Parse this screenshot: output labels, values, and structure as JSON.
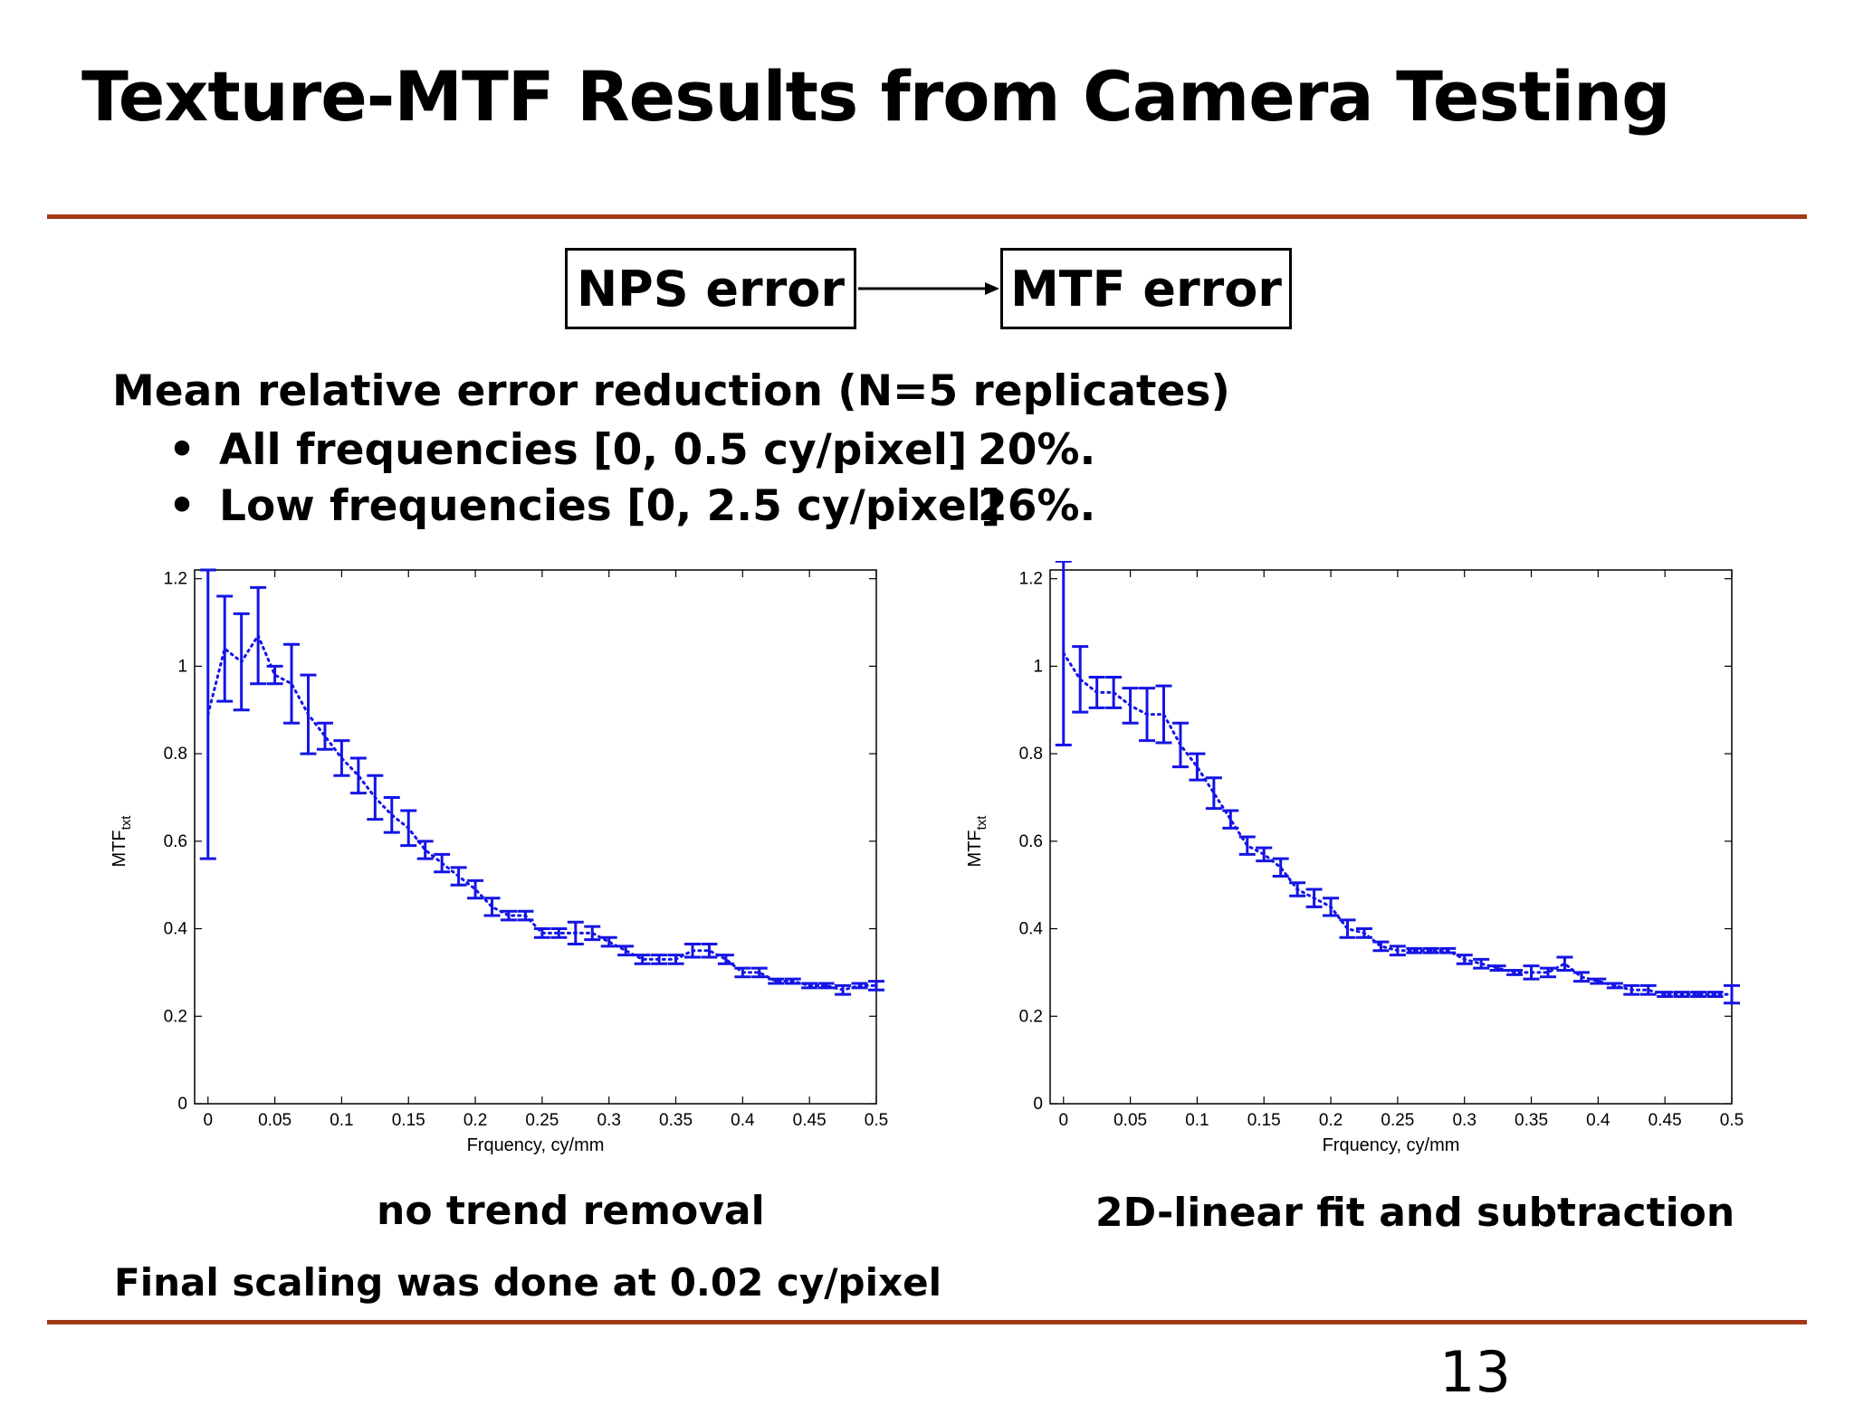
{
  "slide": {
    "title": "Texture-MTF Results from Camera Testing",
    "flow": {
      "from": "NPS error",
      "to": "MTF error"
    },
    "summary": "Mean relative error reduction (N=5 replicates)",
    "bullets": [
      {
        "text": "All frequencies [0, 0.5 cy/pixel]",
        "value": "20%."
      },
      {
        "text": "Low frequencies [0, 2.5 cy/pixel]",
        "value": "26%."
      }
    ],
    "bullet_glyph": "•",
    "captions": [
      "no trend removal",
      "2D-linear fit and subtraction"
    ],
    "footnote": "Final scaling was done at 0.02 cy/pixel",
    "page_number": "13",
    "colors": {
      "rule": "#a23a17",
      "series": "#1414e6"
    }
  },
  "chart_data": [
    {
      "type": "line",
      "error_bars": true,
      "xlabel": "Frquency, cy/mm",
      "ylabel": "MTF",
      "ylabel_subscript": "txt",
      "xlim": [
        -0.01,
        0.5
      ],
      "ylim": [
        0,
        1.22
      ],
      "xticks": [
        0,
        0.05,
        0.1,
        0.15,
        0.2,
        0.25,
        0.3,
        0.35,
        0.4,
        0.45,
        0.5
      ],
      "xtick_labels": [
        "0",
        "0.05",
        "0.1",
        "0.15",
        "0.2",
        "0.25",
        "0.3",
        "0.35",
        "0.4",
        "0.45",
        "0.5"
      ],
      "yticks": [
        0,
        0.2,
        0.4,
        0.6,
        0.8,
        1,
        1.2
      ],
      "ytick_labels": [
        "0",
        "0.2",
        "0.4",
        "0.6",
        "0.8",
        "1",
        "1.2"
      ],
      "grid": false,
      "x": [
        0,
        0.0125,
        0.025,
        0.0375,
        0.05,
        0.0625,
        0.075,
        0.0875,
        0.1,
        0.1125,
        0.125,
        0.1375,
        0.15,
        0.1625,
        0.175,
        0.1875,
        0.2,
        0.2125,
        0.225,
        0.2375,
        0.25,
        0.2625,
        0.275,
        0.2875,
        0.3,
        0.3125,
        0.325,
        0.3375,
        0.35,
        0.3625,
        0.375,
        0.3875,
        0.4,
        0.4125,
        0.425,
        0.4375,
        0.45,
        0.4625,
        0.475,
        0.4875,
        0.5
      ],
      "y": [
        0.89,
        1.04,
        1.01,
        1.07,
        0.98,
        0.96,
        0.89,
        0.84,
        0.79,
        0.75,
        0.7,
        0.66,
        0.63,
        0.58,
        0.55,
        0.52,
        0.49,
        0.45,
        0.43,
        0.43,
        0.39,
        0.39,
        0.39,
        0.39,
        0.37,
        0.35,
        0.33,
        0.33,
        0.33,
        0.35,
        0.35,
        0.33,
        0.3,
        0.3,
        0.28,
        0.28,
        0.27,
        0.27,
        0.26,
        0.27,
        0.27
      ],
      "err": [
        0.33,
        0.12,
        0.11,
        0.11,
        0.02,
        0.09,
        0.09,
        0.03,
        0.04,
        0.04,
        0.05,
        0.04,
        0.04,
        0.02,
        0.02,
        0.02,
        0.02,
        0.02,
        0.01,
        0.01,
        0.01,
        0.01,
        0.025,
        0.015,
        0.01,
        0.01,
        0.01,
        0.01,
        0.01,
        0.015,
        0.015,
        0.01,
        0.01,
        0.01,
        0.005,
        0.005,
        0.005,
        0.005,
        0.01,
        0.005,
        0.01
      ]
    },
    {
      "type": "line",
      "error_bars": true,
      "xlabel": "Frquency, cy/mm",
      "ylabel": "MTF",
      "ylabel_subscript": "txt",
      "xlim": [
        -0.01,
        0.5
      ],
      "ylim": [
        0,
        1.22
      ],
      "xticks": [
        0,
        0.05,
        0.1,
        0.15,
        0.2,
        0.25,
        0.3,
        0.35,
        0.4,
        0.45,
        0.5
      ],
      "xtick_labels": [
        "0",
        "0.05",
        "0.1",
        "0.15",
        "0.2",
        "0.25",
        "0.3",
        "0.35",
        "0.4",
        "0.45",
        "0.5"
      ],
      "yticks": [
        0,
        0.2,
        0.4,
        0.6,
        0.8,
        1,
        1.2
      ],
      "ytick_labels": [
        "0",
        "0.2",
        "0.4",
        "0.6",
        "0.8",
        "1",
        "1.2"
      ],
      "grid": false,
      "x": [
        0,
        0.0125,
        0.025,
        0.0375,
        0.05,
        0.0625,
        0.075,
        0.0875,
        0.1,
        0.1125,
        0.125,
        0.1375,
        0.15,
        0.1625,
        0.175,
        0.1875,
        0.2,
        0.2125,
        0.225,
        0.2375,
        0.25,
        0.2625,
        0.275,
        0.2875,
        0.3,
        0.3125,
        0.325,
        0.3375,
        0.35,
        0.3625,
        0.375,
        0.3875,
        0.4,
        0.4125,
        0.425,
        0.4375,
        0.45,
        0.4625,
        0.475,
        0.4875,
        0.5
      ],
      "y": [
        1.03,
        0.97,
        0.94,
        0.94,
        0.91,
        0.89,
        0.89,
        0.82,
        0.77,
        0.71,
        0.65,
        0.59,
        0.57,
        0.54,
        0.49,
        0.47,
        0.45,
        0.4,
        0.39,
        0.36,
        0.35,
        0.35,
        0.35,
        0.35,
        0.33,
        0.32,
        0.31,
        0.3,
        0.3,
        0.3,
        0.32,
        0.29,
        0.28,
        0.27,
        0.26,
        0.26,
        0.25,
        0.25,
        0.25,
        0.25,
        0.25
      ],
      "err": [
        0.21,
        0.075,
        0.035,
        0.035,
        0.04,
        0.06,
        0.065,
        0.05,
        0.03,
        0.035,
        0.02,
        0.02,
        0.015,
        0.02,
        0.015,
        0.02,
        0.02,
        0.02,
        0.01,
        0.01,
        0.01,
        0.005,
        0.005,
        0.005,
        0.01,
        0.01,
        0.005,
        0.005,
        0.015,
        0.01,
        0.015,
        0.01,
        0.005,
        0.005,
        0.01,
        0.01,
        0.005,
        0.005,
        0.005,
        0.005,
        0.02
      ]
    }
  ]
}
